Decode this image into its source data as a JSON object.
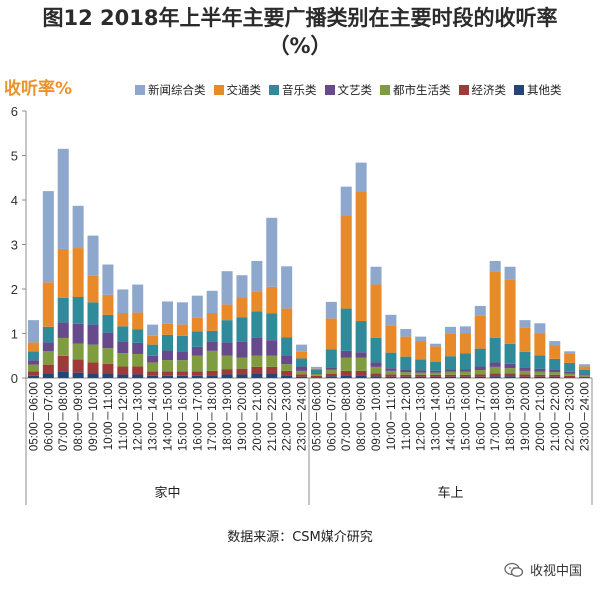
{
  "page": {
    "title_line1": "图12 2018年上半年主要广播类别在主要时段的收听率",
    "title_line2": "（%）",
    "source": "数据来源：CSM媒介研究",
    "brand": "收视中国"
  },
  "chart_data": {
    "type": "bar",
    "stacked": true,
    "title": "图12 2018年上半年主要广播类别在主要时段的收听率（%）",
    "ylabel": "收听率%",
    "ylim": [
      0,
      6
    ],
    "yticks": [
      0,
      1,
      2,
      3,
      4,
      5,
      6
    ],
    "groups": [
      {
        "name": "家中",
        "categories": [
          "05:00－06:00",
          "06:00－07:00",
          "07:00－08:00",
          "08:00－09:00",
          "09:00－10:00",
          "10:00－11:00",
          "11:00－12:00",
          "12:00－13:00",
          "13:00－14:00",
          "14:00－15:00",
          "15:00－16:00",
          "16:00－17:00",
          "17:00－18:00",
          "18:00－19:00",
          "19:00－20:00",
          "20:00－21:00",
          "21:00－22:00",
          "22:00－23:00",
          "23:00－24:00"
        ]
      },
      {
        "name": "车上",
        "categories": [
          "05:00－06:00",
          "06:00－07:00",
          "07:00－08:00",
          "08:00－09:00",
          "09:00－10:00",
          "10:00－11:00",
          "11:00－12:00",
          "12:00－13:00",
          "13:00－14:00",
          "14:00－15:00",
          "15:00－16:00",
          "16:00－17:00",
          "17:00－18:00",
          "18:00－19:00",
          "19:00－20:00",
          "20:00－21:00",
          "21:00－22:00",
          "22:00－23:00",
          "23:00－24:00"
        ]
      }
    ],
    "series": [
      {
        "name": "其他类",
        "color": "#264478",
        "values": [
          0.05,
          0.1,
          0.15,
          0.12,
          0.1,
          0.1,
          0.08,
          0.08,
          0.05,
          0.05,
          0.05,
          0.05,
          0.06,
          0.08,
          0.08,
          0.1,
          0.1,
          0.06,
          0.03,
          0.02,
          0.04,
          0.06,
          0.06,
          0.04,
          0.03,
          0.03,
          0.03,
          0.03,
          0.03,
          0.03,
          0.03,
          0.04,
          0.04,
          0.03,
          0.03,
          0.03,
          0.02,
          0.01
        ]
      },
      {
        "name": "经济类",
        "color": "#9e3b38",
        "values": [
          0.1,
          0.2,
          0.35,
          0.3,
          0.25,
          0.22,
          0.18,
          0.18,
          0.1,
          0.1,
          0.1,
          0.1,
          0.1,
          0.12,
          0.13,
          0.15,
          0.15,
          0.1,
          0.05,
          0.03,
          0.05,
          0.1,
          0.1,
          0.06,
          0.05,
          0.04,
          0.04,
          0.04,
          0.04,
          0.04,
          0.05,
          0.06,
          0.06,
          0.05,
          0.04,
          0.04,
          0.03,
          0.02
        ]
      },
      {
        "name": "都市生活类",
        "color": "#7f9c40",
        "values": [
          0.15,
          0.3,
          0.4,
          0.35,
          0.4,
          0.35,
          0.3,
          0.28,
          0.2,
          0.25,
          0.25,
          0.35,
          0.45,
          0.3,
          0.25,
          0.25,
          0.25,
          0.15,
          0.08,
          0.04,
          0.1,
          0.3,
          0.3,
          0.15,
          0.08,
          0.06,
          0.05,
          0.05,
          0.07,
          0.07,
          0.1,
          0.15,
          0.12,
          0.08,
          0.07,
          0.06,
          0.05,
          0.03
        ]
      },
      {
        "name": "文艺类",
        "color": "#664a8b",
        "values": [
          0.1,
          0.2,
          0.35,
          0.45,
          0.45,
          0.35,
          0.25,
          0.25,
          0.15,
          0.22,
          0.2,
          0.2,
          0.2,
          0.3,
          0.35,
          0.4,
          0.35,
          0.2,
          0.1,
          0.02,
          0.05,
          0.15,
          0.12,
          0.1,
          0.06,
          0.05,
          0.05,
          0.04,
          0.05,
          0.06,
          0.08,
          0.1,
          0.1,
          0.08,
          0.07,
          0.05,
          0.04,
          0.02
        ]
      },
      {
        "name": "音乐类",
        "color": "#2f8b99",
        "values": [
          0.2,
          0.35,
          0.55,
          0.6,
          0.5,
          0.4,
          0.35,
          0.3,
          0.25,
          0.35,
          0.35,
          0.35,
          0.25,
          0.5,
          0.55,
          0.6,
          0.6,
          0.4,
          0.18,
          0.08,
          0.4,
          0.95,
          0.7,
          0.55,
          0.35,
          0.3,
          0.25,
          0.2,
          0.3,
          0.35,
          0.4,
          0.55,
          0.45,
          0.35,
          0.3,
          0.25,
          0.2,
          0.1
        ]
      },
      {
        "name": "交通类",
        "color": "#e8892a",
        "values": [
          0.2,
          1.0,
          1.1,
          1.1,
          0.6,
          0.45,
          0.3,
          0.38,
          0.2,
          0.25,
          0.25,
          0.3,
          0.4,
          0.35,
          0.45,
          0.45,
          0.6,
          0.65,
          0.15,
          0.02,
          0.7,
          2.1,
          2.9,
          1.2,
          0.6,
          0.45,
          0.4,
          0.35,
          0.5,
          0.45,
          0.75,
          1.5,
          1.45,
          0.55,
          0.5,
          0.3,
          0.2,
          0.08
        ]
      },
      {
        "name": "新闻综合类",
        "color": "#8ea7cd",
        "values": [
          0.5,
          2.05,
          2.25,
          0.95,
          0.9,
          0.68,
          0.53,
          0.63,
          0.25,
          0.5,
          0.5,
          0.5,
          0.5,
          0.75,
          0.5,
          0.68,
          1.55,
          0.95,
          0.16,
          0.04,
          0.37,
          0.64,
          0.66,
          0.4,
          0.25,
          0.17,
          0.11,
          0.06,
          0.16,
          0.16,
          0.21,
          0.23,
          0.28,
          0.16,
          0.22,
          0.1,
          0.06,
          0.05
        ]
      }
    ],
    "legend_order": [
      "新闻综合类",
      "交通类",
      "音乐类",
      "文艺类",
      "都市生活类",
      "经济类",
      "其他类"
    ],
    "legend_position": "top"
  }
}
